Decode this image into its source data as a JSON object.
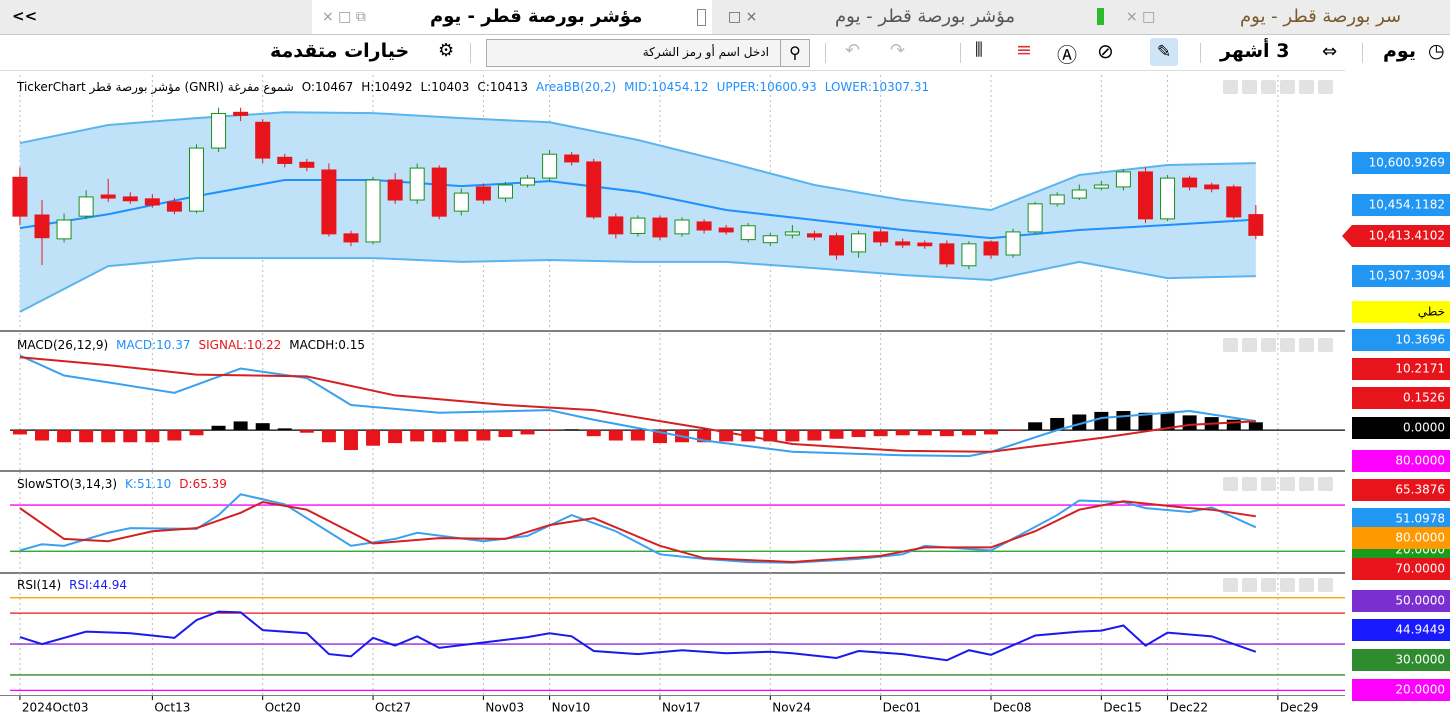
{
  "ui": {
    "back": "<<",
    "tabs": [
      "مؤشر بورصة قطر - يوم",
      "مؤشر بورصة قطر - يوم",
      "سر بورصة قطر - يوم"
    ],
    "period": "يوم",
    "range": "3 أشهر",
    "search_placeholder": "ادخل اسم أو رمز الشركة",
    "advanced": "خيارات متقدمة"
  },
  "chart_data": [
    {
      "type": "candlestick",
      "header": [
        {
          "text": "TickerChart مؤشر بورصة قطر (GNRI)  شموع مفرغة",
          "color": "#000000"
        },
        {
          "text": "O:10467",
          "color": "#000000"
        },
        {
          "text": "H:10492",
          "color": "#000000"
        },
        {
          "text": "L:10403",
          "color": "#000000"
        },
        {
          "text": "C:10413",
          "color": "#000000"
        },
        {
          "text": "AreaBB(20,2)",
          "color": "#1e90ff"
        },
        {
          "text": "MID:10454.12",
          "color": "#1e90ff"
        },
        {
          "text": "UPPER:10600.93",
          "color": "#1e90ff"
        },
        {
          "text": "LOWER:10307.31",
          "color": "#1e90ff"
        }
      ],
      "ylim": [
        10167,
        10830
      ],
      "up_color": "#1a8f1a",
      "down_color": "#e8141b",
      "band_color": "#bfe2f8",
      "open": [
        10564,
        10466,
        10404,
        10463,
        10518,
        10513,
        10508,
        10500,
        10476,
        10640,
        10733,
        10707,
        10616,
        10603,
        10583,
        10417,
        10396,
        10557,
        10505,
        10588,
        10476,
        10539,
        10510,
        10544,
        10562,
        10622,
        10604,
        10461,
        10418,
        10458,
        10417,
        10448,
        10432,
        10402,
        10394,
        10414,
        10417,
        10412,
        10370,
        10422,
        10396,
        10393,
        10391,
        10334,
        10396,
        10362,
        10422,
        10495,
        10510,
        10536,
        10539,
        10578,
        10456,
        10562,
        10544,
        10539,
        10467
      ],
      "high": [
        10590,
        10505,
        10470,
        10530,
        10560,
        10525,
        10520,
        10510,
        10650,
        10745,
        10745,
        10715,
        10625,
        10612,
        10600,
        10425,
        10565,
        10575,
        10600,
        10595,
        10535,
        10548,
        10552,
        10570,
        10635,
        10630,
        10612,
        10470,
        10465,
        10465,
        10460,
        10455,
        10440,
        10445,
        10420,
        10440,
        10425,
        10420,
        10425,
        10430,
        10405,
        10400,
        10400,
        10398,
        10400,
        10430,
        10500,
        10525,
        10545,
        10555,
        10585,
        10590,
        10570,
        10568,
        10550,
        10545,
        10492
      ],
      "low": [
        10440,
        10336,
        10395,
        10455,
        10500,
        10495,
        10485,
        10468,
        10470,
        10630,
        10710,
        10600,
        10590,
        10580,
        10410,
        10385,
        10390,
        10495,
        10495,
        10455,
        10465,
        10495,
        10500,
        10538,
        10555,
        10595,
        10455,
        10405,
        10410,
        10400,
        10410,
        10418,
        10415,
        10395,
        10385,
        10405,
        10400,
        10350,
        10355,
        10385,
        10380,
        10378,
        10330,
        10325,
        10352,
        10355,
        10418,
        10488,
        10505,
        10530,
        10530,
        10445,
        10450,
        10530,
        10525,
        10455,
        10403
      ],
      "close": [
        10463,
        10407,
        10453,
        10513,
        10510,
        10503,
        10492,
        10476,
        10640,
        10730,
        10725,
        10614,
        10600,
        10590,
        10417,
        10396,
        10557,
        10505,
        10588,
        10463,
        10523,
        10505,
        10544,
        10562,
        10624,
        10604,
        10461,
        10417,
        10458,
        10409,
        10453,
        10427,
        10422,
        10438,
        10412,
        10422,
        10409,
        10362,
        10417,
        10396,
        10388,
        10386,
        10339,
        10391,
        10362,
        10422,
        10495,
        10518,
        10531,
        10544,
        10578,
        10456,
        10562,
        10539,
        10534,
        10461,
        10413
      ],
      "series": [
        {
          "color": "#5ab4ee",
          "x": [
            0,
            4,
            8,
            12,
            16,
            20,
            24,
            28,
            32,
            36,
            40,
            44,
            48,
            52,
            56
          ],
          "values": [
            10653,
            10700,
            10718,
            10733,
            10731,
            10718,
            10707,
            10661,
            10604,
            10544,
            10505,
            10479,
            10570,
            10596,
            10601
          ]
        },
        {
          "color": "#1e90ff",
          "x": [
            0,
            4,
            8,
            12,
            16,
            20,
            24,
            28,
            32,
            36,
            40,
            44,
            48,
            52,
            56
          ],
          "values": [
            10432,
            10468,
            10515,
            10557,
            10557,
            10541,
            10554,
            10526,
            10479,
            10453,
            10427,
            10406,
            10427,
            10440,
            10454
          ]
        },
        {
          "color": "#5ab4ee",
          "x": [
            0,
            4,
            8,
            12,
            16,
            20,
            24,
            28,
            32,
            36,
            40,
            44,
            48,
            52,
            56
          ],
          "values": [
            10214,
            10333,
            10354,
            10354,
            10354,
            10344,
            10349,
            10344,
            10344,
            10328,
            10310,
            10297,
            10344,
            10302,
            10307
          ]
        }
      ],
      "right_labels": [
        {
          "label": "10,600.9269",
          "color": "#2196f3"
        },
        {
          "label": "10,454.1182",
          "color": "#2196f3"
        },
        {
          "label": "10,413.4102",
          "color": "#e8141b"
        },
        {
          "label": "10,307.3094",
          "color": "#2196f3"
        },
        {
          "label": "خطي",
          "color": "#ffff00"
        }
      ]
    },
    {
      "type": "macd",
      "header": [
        {
          "text": "MACD(26,12,9)",
          "color": "#000000"
        },
        {
          "text": "MACD:10.37",
          "color": "#1e90ff"
        },
        {
          "text": "SIGNAL:10.22",
          "color": "#e8141b"
        },
        {
          "text": "MACDH:0.15",
          "color": "#000000"
        }
      ],
      "ylim": [
        -46,
        112
      ],
      "levels": [
        {
          "value": 0,
          "color": "#000000"
        }
      ],
      "histogram": {
        "up_color": "#000000",
        "down_color": "#e8141b",
        "values": [
          -5,
          -12,
          -14,
          -14,
          -14,
          -14,
          -14,
          -12,
          -6,
          5,
          10,
          8,
          2,
          -3,
          -14,
          -23,
          -18,
          -15,
          -13,
          -14,
          -13,
          -12,
          -8,
          -5,
          -1,
          1,
          -7,
          -12,
          -12,
          -15,
          -14,
          -14,
          -13,
          -13,
          -13,
          -13,
          -12,
          -10,
          -8,
          -7,
          -6,
          -6,
          -7,
          -6,
          -5,
          -1,
          9,
          14,
          18,
          21,
          22,
          20,
          20,
          17,
          15,
          12,
          9
        ]
      },
      "series": [
        {
          "color": "#3aa0f0",
          "x": [
            0,
            2,
            4,
            7,
            10,
            13,
            15,
            19,
            24,
            26,
            31,
            35,
            40,
            43,
            44,
            47,
            49,
            53,
            56
          ],
          "values": [
            86,
            63,
            55,
            43,
            71,
            60,
            29,
            20,
            23,
            12,
            -12,
            -25,
            -29,
            -30,
            -25,
            0,
            14,
            22,
            10.37
          ]
        },
        {
          "color": "#d42020",
          "x": [
            0,
            4,
            8,
            13,
            17,
            22,
            26,
            31,
            35,
            40,
            44,
            49,
            53,
            56
          ],
          "values": [
            84,
            75,
            64,
            62,
            40,
            29,
            23,
            2,
            -16,
            -24,
            -25,
            -9,
            6,
            10.22
          ]
        }
      ],
      "right_labels": [
        {
          "label": "10.3696",
          "color": "#2196f3"
        },
        {
          "label": "10.2171",
          "color": "#e8141b"
        },
        {
          "label": "0.1526",
          "color": "#e8141b"
        },
        {
          "label": "0.0000",
          "color": "#000000"
        }
      ]
    },
    {
      "type": "line",
      "header": [
        {
          "text": "SlowSTO(3,14,3)",
          "color": "#000000"
        },
        {
          "text": "K:51.10",
          "color": "#1e90ff"
        },
        {
          "text": "D:65.39",
          "color": "#e8141b"
        }
      ],
      "ylim": [
        -7,
        123
      ],
      "levels": [
        {
          "value": 80,
          "color": "#ff00ff"
        },
        {
          "value": 20,
          "color": "#1a9c1a"
        }
      ],
      "series": [
        {
          "color": "#3aa0f0",
          "x": [
            0,
            1,
            2,
            4,
            5,
            8,
            9,
            10,
            12,
            15,
            17,
            18,
            21,
            23,
            25,
            27,
            29,
            31,
            33,
            35,
            38,
            40,
            41,
            44,
            47,
            48,
            50,
            51,
            53,
            54,
            56
          ],
          "values": [
            21,
            29,
            27,
            44,
            50,
            49,
            67,
            94,
            81,
            27,
            36,
            44,
            33,
            40,
            67,
            46,
            16,
            10,
            6,
            5,
            10,
            16,
            27,
            21,
            67,
            86,
            84,
            76,
            71,
            77,
            51.1
          ]
        },
        {
          "color": "#d42020",
          "x": [
            0,
            2,
            4,
            6,
            8,
            10,
            11,
            13,
            16,
            19,
            22,
            24,
            26,
            29,
            31,
            35,
            39,
            41,
            44,
            46,
            48,
            50,
            53,
            54,
            56
          ],
          "values": [
            76,
            36,
            33,
            46,
            50,
            70,
            84,
            74,
            30,
            37,
            36,
            54,
            63,
            27,
            11,
            6,
            14,
            25,
            25,
            46,
            74,
            85,
            76,
            74,
            65.39
          ]
        }
      ],
      "right_labels": [
        {
          "label": "80.0000",
          "color": "#ff00ff"
        },
        {
          "label": "65.3876",
          "color": "#e8141b"
        },
        {
          "label": "51.0978",
          "color": "#2196f3"
        },
        {
          "label": "20.0000",
          "color": "#1a9c1a"
        }
      ]
    },
    {
      "type": "line",
      "header": [
        {
          "text": "RSI(14)",
          "color": "#000000"
        },
        {
          "text": "RSI:44.94",
          "color": "#1a1aff"
        }
      ],
      "ylim": [
        17,
        96
      ],
      "levels": [
        {
          "value": 80,
          "color": "#ffa500"
        },
        {
          "value": 70,
          "color": "#e8141b"
        },
        {
          "value": 50,
          "color": "#8a2be2"
        },
        {
          "value": 30,
          "color": "#2e8b2e"
        },
        {
          "value": 20,
          "color": "#ff00ff"
        }
      ],
      "series": [
        {
          "color": "#1a1aee",
          "x": [
            0,
            1,
            3,
            5,
            7,
            8,
            9,
            10,
            11,
            13,
            14,
            15,
            16,
            17,
            18,
            19,
            21,
            23,
            24,
            25,
            26,
            28,
            30,
            32,
            34,
            35,
            37,
            38,
            40,
            42,
            43,
            44,
            46,
            48,
            49,
            50,
            51,
            52,
            54,
            56
          ],
          "values": [
            54.5,
            50,
            58,
            57,
            54,
            65.5,
            71,
            70.5,
            59,
            57,
            43.5,
            42,
            54,
            49,
            55,
            47.5,
            51,
            54.5,
            57,
            55,
            45.5,
            43.5,
            46,
            44,
            45,
            44,
            41,
            45.5,
            43.5,
            39.5,
            46,
            43,
            55.5,
            58,
            58.7,
            62,
            49,
            57.4,
            55,
            44.94
          ]
        }
      ],
      "right_labels": [
        {
          "label": "80.0000",
          "color": "#ff9900"
        },
        {
          "label": "70.0000",
          "color": "#e8141b"
        },
        {
          "label": "50.0000",
          "color": "#7b2fd0"
        },
        {
          "label": "44.9449",
          "color": "#1a1aff"
        },
        {
          "label": "30.0000",
          "color": "#2e8b2e"
        },
        {
          "label": "20.0000",
          "color": "#ff00ff"
        }
      ],
      "xlim": [
        -0.45,
        60.04
      ],
      "xticks": [
        {
          "value": 0,
          "label": "2024Oct03"
        },
        {
          "value": 6,
          "label": "Oct13"
        },
        {
          "value": 11,
          "label": "Oct20"
        },
        {
          "value": 16,
          "label": "Oct27"
        },
        {
          "value": 21,
          "label": "Nov03"
        },
        {
          "value": 24,
          "label": "Nov10"
        },
        {
          "value": 29,
          "label": "Nov17"
        },
        {
          "value": 34,
          "label": "Nov24"
        },
        {
          "value": 39,
          "label": "Dec01"
        },
        {
          "value": 44,
          "label": "Dec08"
        },
        {
          "value": 49,
          "label": "Dec15"
        },
        {
          "value": 52,
          "label": "Dec22"
        },
        {
          "value": 57,
          "label": "Dec29"
        }
      ]
    }
  ]
}
